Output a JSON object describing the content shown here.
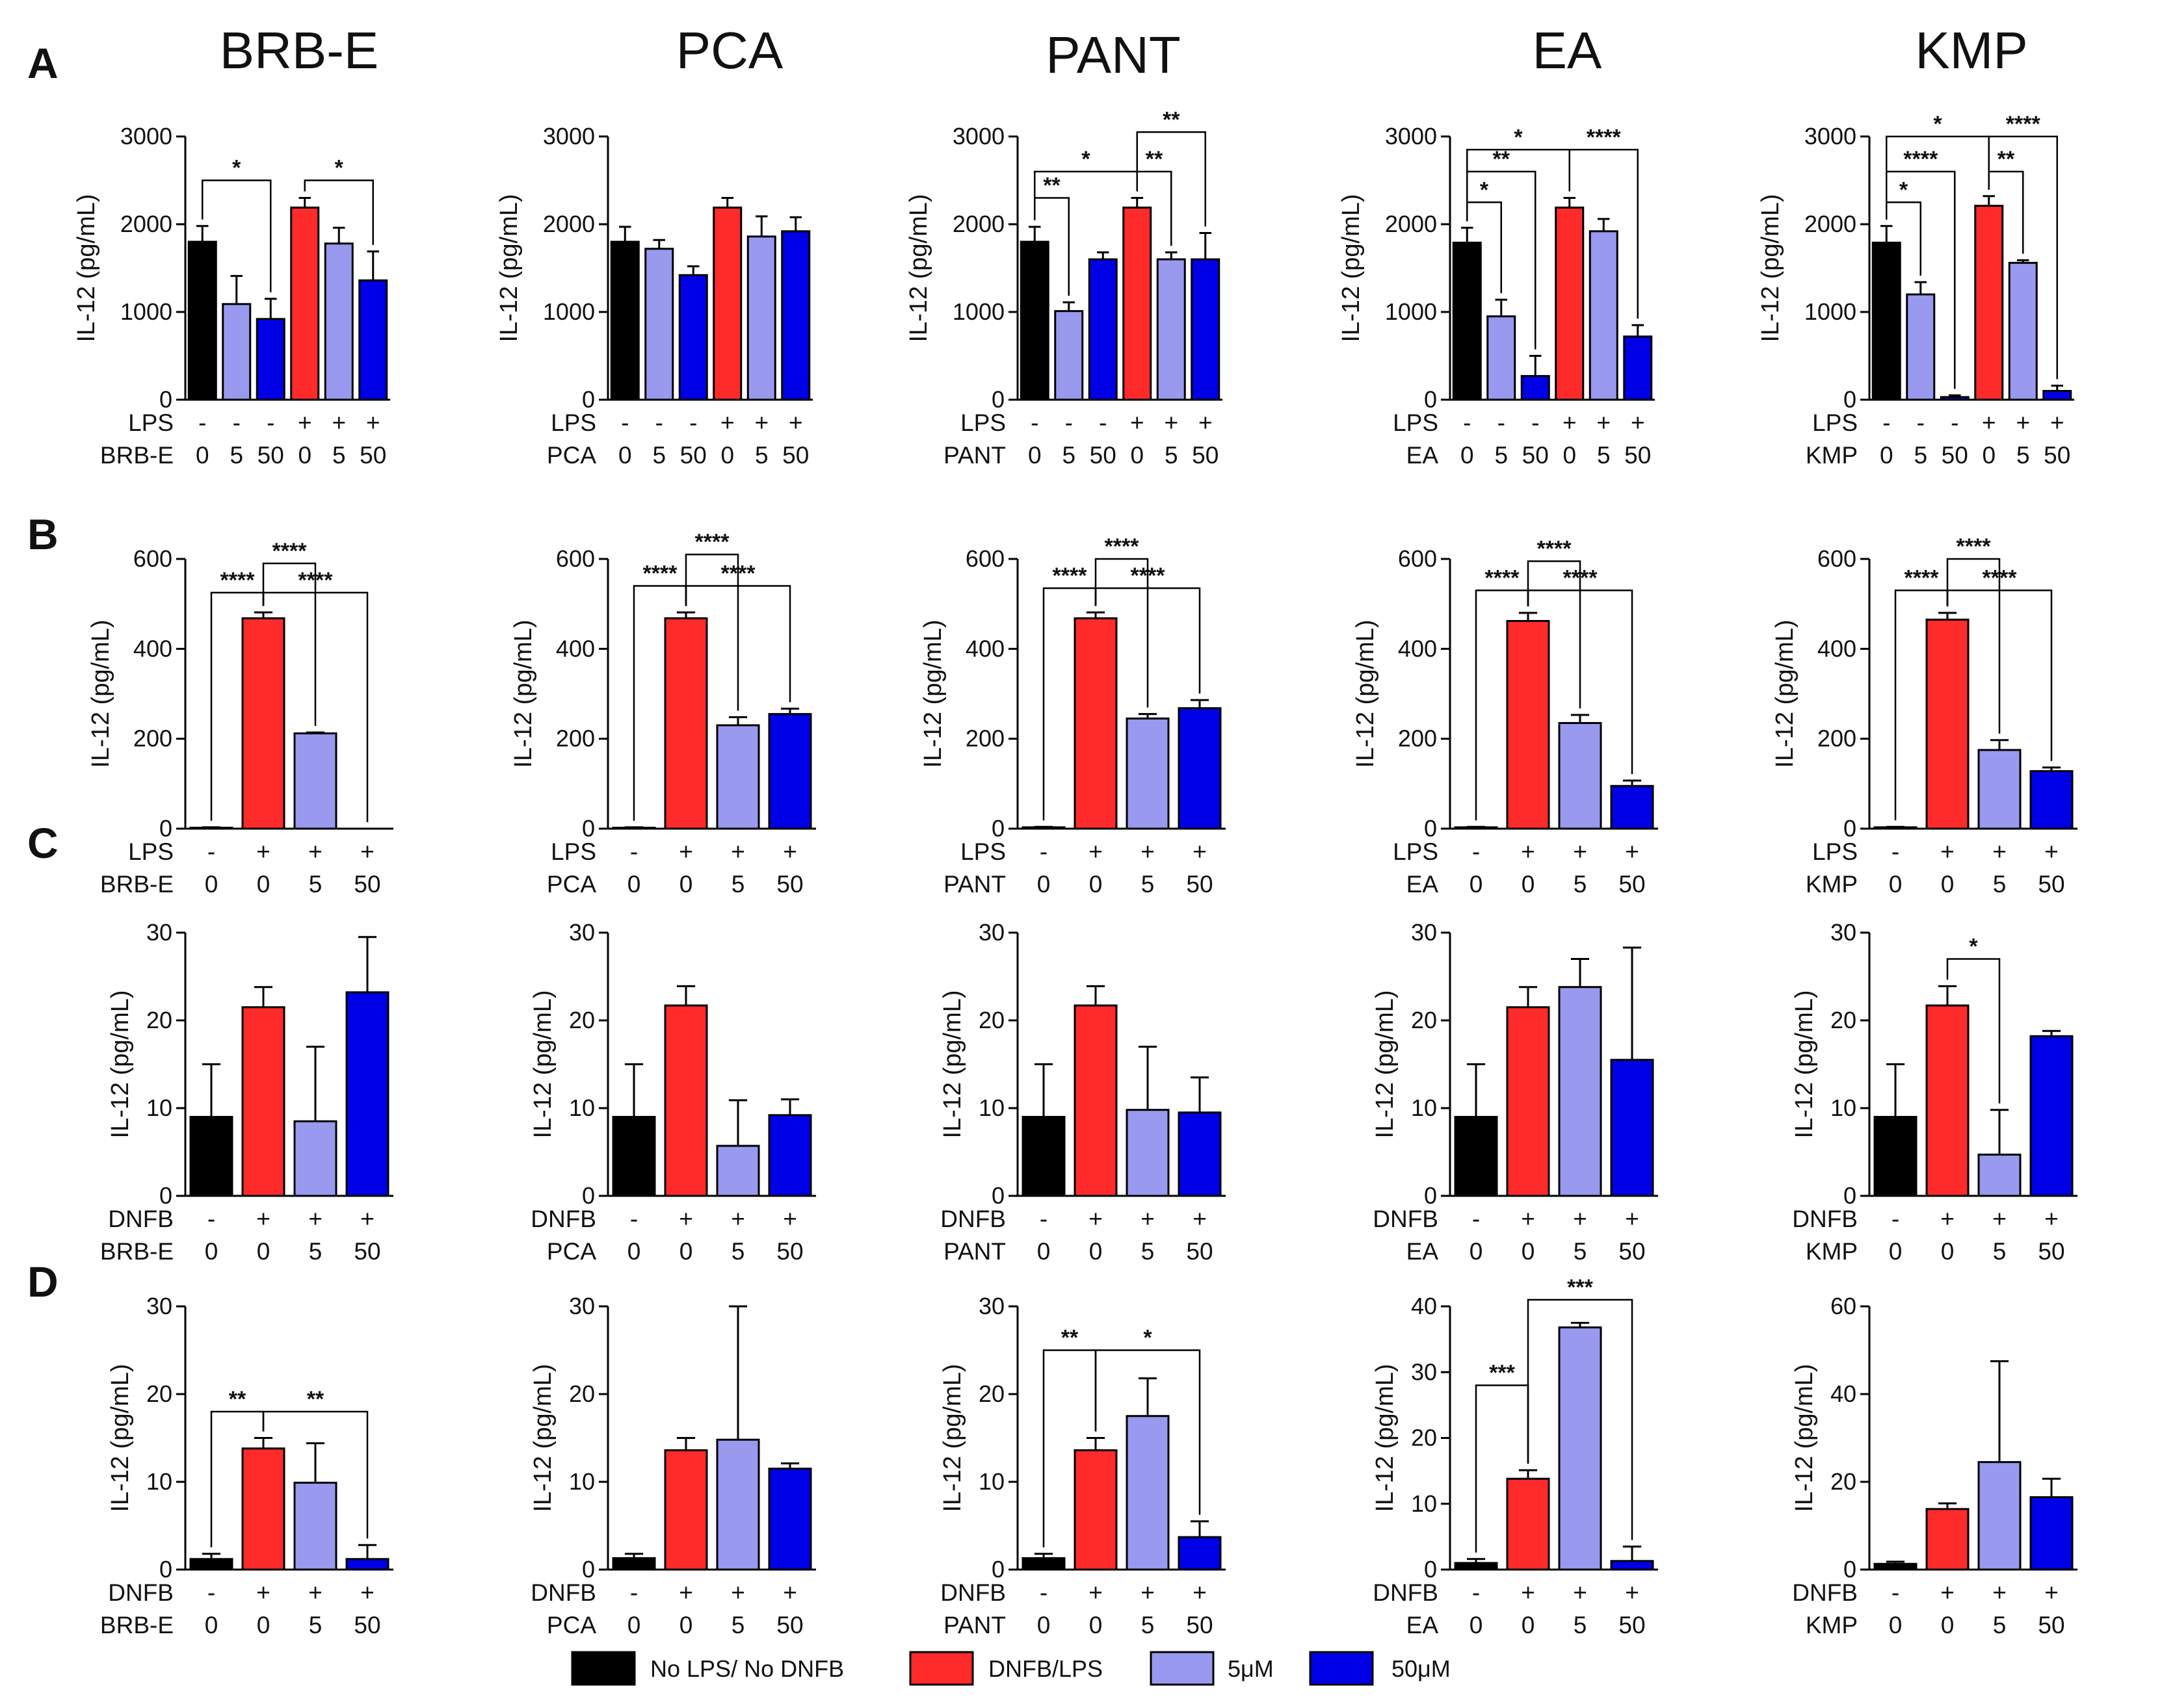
{
  "figure": {
    "row_labels": [
      "A",
      "B",
      "C",
      "D"
    ],
    "column_titles": [
      "BRB-E",
      "PCA",
      "PANT",
      "EA",
      "KMP"
    ],
    "legend": [
      {
        "label": "No LPS/ No DNFB",
        "color": "#000000"
      },
      {
        "label": "DNFB/LPS",
        "color": "#ff2a2a"
      },
      {
        "label": "5μM",
        "color": "#9999f0"
      },
      {
        "label": "50μM",
        "color": "#0000e6"
      }
    ]
  },
  "chart_data": [
    {
      "id": "A-BRB-E",
      "row": "A",
      "col": 0,
      "type": "bar",
      "ylabel": "IL-12 (pg/mL)",
      "ylim": [
        0,
        3000
      ],
      "yticks": [
        0,
        1000,
        2000,
        3000
      ],
      "stim_label": "LPS",
      "stim": [
        "-",
        "-",
        "-",
        "+",
        "+",
        "+"
      ],
      "compound_label": "BRB-E",
      "conc": [
        "0",
        "5",
        "50",
        "0",
        "5",
        "50"
      ],
      "values": [
        1800,
        1090,
        920,
        2190,
        1780,
        1360
      ],
      "errors": [
        180,
        320,
        230,
        110,
        180,
        330
      ],
      "colors": [
        "#000000",
        "#9999f0",
        "#0000e6",
        "#ff2a2a",
        "#9999f0",
        "#0000e6"
      ],
      "sig": [
        {
          "a": 0,
          "b": 2,
          "y": 2500,
          "label": "*"
        },
        {
          "a": 3,
          "b": 5,
          "y": 2500,
          "label": "*"
        }
      ]
    },
    {
      "id": "A-PCA",
      "row": "A",
      "col": 1,
      "type": "bar",
      "ylabel": "IL-12 (pg/mL)",
      "ylim": [
        0,
        3000
      ],
      "yticks": [
        0,
        1000,
        2000,
        3000
      ],
      "stim_label": "LPS",
      "stim": [
        "-",
        "-",
        "-",
        "+",
        "+",
        "+"
      ],
      "compound_label": "PCA",
      "conc": [
        "0",
        "5",
        "50",
        "0",
        "5",
        "50"
      ],
      "values": [
        1800,
        1720,
        1420,
        2190,
        1860,
        1920
      ],
      "errors": [
        170,
        100,
        100,
        110,
        230,
        160
      ],
      "colors": [
        "#000000",
        "#9999f0",
        "#0000e6",
        "#ff2a2a",
        "#9999f0",
        "#0000e6"
      ],
      "sig": []
    },
    {
      "id": "A-PANT",
      "row": "A",
      "col": 2,
      "type": "bar",
      "ylabel": "IL-12 (pg/mL)",
      "ylim": [
        0,
        3000
      ],
      "yticks": [
        0,
        1000,
        2000,
        3000
      ],
      "stim_label": "LPS",
      "stim": [
        "-",
        "-",
        "-",
        "+",
        "+",
        "+"
      ],
      "compound_label": "PANT",
      "conc": [
        "0",
        "5",
        "50",
        "0",
        "5",
        "50"
      ],
      "values": [
        1800,
        1010,
        1600,
        2190,
        1600,
        1600
      ],
      "errors": [
        170,
        100,
        80,
        110,
        80,
        300
      ],
      "colors": [
        "#000000",
        "#9999f0",
        "#0000e6",
        "#ff2a2a",
        "#9999f0",
        "#0000e6"
      ],
      "sig": [
        {
          "a": 0,
          "b": 1,
          "y": 2300,
          "label": "**"
        },
        {
          "a": 0,
          "b": 3,
          "y": 2600,
          "label": "*"
        },
        {
          "a": 3,
          "b": 4,
          "y": 2600,
          "label": "**"
        },
        {
          "a": 3,
          "b": 5,
          "y": 3050,
          "label": "**"
        }
      ]
    },
    {
      "id": "A-EA",
      "row": "A",
      "col": 3,
      "type": "bar",
      "ylabel": "IL-12 (pg/mL)",
      "ylim": [
        0,
        3000
      ],
      "yticks": [
        0,
        1000,
        2000,
        3000
      ],
      "stim_label": "LPS",
      "stim": [
        "-",
        "-",
        "-",
        "+",
        "+",
        "+"
      ],
      "compound_label": "EA",
      "conc": [
        "0",
        "5",
        "50",
        "0",
        "5",
        "50"
      ],
      "values": [
        1790,
        950,
        270,
        2190,
        1920,
        720
      ],
      "errors": [
        170,
        190,
        230,
        110,
        140,
        130
      ],
      "colors": [
        "#000000",
        "#9999f0",
        "#0000e6",
        "#ff2a2a",
        "#9999f0",
        "#0000e6"
      ],
      "sig": [
        {
          "a": 0,
          "b": 1,
          "y": 2250,
          "label": "*"
        },
        {
          "a": 0,
          "b": 2,
          "y": 2600,
          "label": "**"
        },
        {
          "a": 0,
          "b": 3,
          "y": 2850,
          "label": "*"
        },
        {
          "a": 3,
          "b": 5,
          "y": 2850,
          "label": "****"
        }
      ]
    },
    {
      "id": "A-KMP",
      "row": "A",
      "col": 4,
      "type": "bar",
      "ylabel": "IL-12 (pg/mL)",
      "ylim": [
        0,
        3000
      ],
      "yticks": [
        0,
        1000,
        2000,
        3000
      ],
      "stim_label": "LPS",
      "stim": [
        "-",
        "-",
        "-",
        "+",
        "+",
        "+"
      ],
      "compound_label": "KMP",
      "conc": [
        "0",
        "5",
        "50",
        "0",
        "5",
        "50"
      ],
      "values": [
        1790,
        1200,
        30,
        2210,
        1560,
        100
      ],
      "errors": [
        190,
        140,
        20,
        110,
        30,
        60
      ],
      "colors": [
        "#000000",
        "#9999f0",
        "#0000e6",
        "#ff2a2a",
        "#9999f0",
        "#0000e6"
      ],
      "sig": [
        {
          "a": 0,
          "b": 1,
          "y": 2250,
          "label": "*"
        },
        {
          "a": 0,
          "b": 2,
          "y": 2600,
          "label": "****"
        },
        {
          "a": 0,
          "b": 3,
          "y": 3000,
          "label": "*"
        },
        {
          "a": 3,
          "b": 4,
          "y": 2600,
          "label": "**"
        },
        {
          "a": 3,
          "b": 5,
          "y": 3000,
          "label": "****"
        }
      ]
    },
    {
      "id": "B-BRB-E",
      "row": "B",
      "col": 0,
      "type": "bar",
      "ylabel": "IL-12 (pg/mL)",
      "ylim": [
        0,
        600
      ],
      "yticks": [
        0,
        200,
        400,
        600
      ],
      "stim_label": "LPS",
      "stim": [
        "-",
        "+",
        "+",
        "+"
      ],
      "compound_label": "BRB-E",
      "conc": [
        "0",
        "0",
        "5",
        "50"
      ],
      "values": [
        2,
        468,
        212,
        0
      ],
      "errors": [
        1,
        13,
        2,
        0
      ],
      "colors": [
        "#000000",
        "#ff2a2a",
        "#9999f0",
        "#0000e6"
      ],
      "sig": [
        {
          "a": 0,
          "b": 1,
          "y": 525,
          "label": "****"
        },
        {
          "a": 1,
          "b": 2,
          "y": 590,
          "label": "****"
        },
        {
          "a": 1,
          "b": 3,
          "y": 525,
          "label": "****"
        }
      ]
    },
    {
      "id": "B-PCA",
      "row": "B",
      "col": 1,
      "type": "bar",
      "ylabel": "IL-12 (pg/mL)",
      "ylim": [
        0,
        600
      ],
      "yticks": [
        0,
        200,
        400,
        600
      ],
      "stim_label": "LPS",
      "stim": [
        "-",
        "+",
        "+",
        "+"
      ],
      "compound_label": "PCA",
      "conc": [
        "0",
        "0",
        "5",
        "50"
      ],
      "values": [
        2,
        468,
        230,
        255
      ],
      "errors": [
        1,
        13,
        18,
        12
      ],
      "colors": [
        "#000000",
        "#ff2a2a",
        "#9999f0",
        "#0000e6"
      ],
      "sig": [
        {
          "a": 0,
          "b": 1,
          "y": 540,
          "label": "****"
        },
        {
          "a": 1,
          "b": 2,
          "y": 610,
          "label": "****"
        },
        {
          "a": 1,
          "b": 3,
          "y": 540,
          "label": "****"
        }
      ]
    },
    {
      "id": "B-PANT",
      "row": "B",
      "col": 2,
      "type": "bar",
      "ylabel": "IL-12 (pg/mL)",
      "ylim": [
        0,
        600
      ],
      "yticks": [
        0,
        200,
        400,
        600
      ],
      "stim_label": "LPS",
      "stim": [
        "-",
        "+",
        "+",
        "+"
      ],
      "compound_label": "PANT",
      "conc": [
        "0",
        "0",
        "5",
        "50"
      ],
      "values": [
        3,
        468,
        245,
        268
      ],
      "errors": [
        1,
        13,
        10,
        18
      ],
      "colors": [
        "#000000",
        "#ff2a2a",
        "#9999f0",
        "#0000e6"
      ],
      "sig": [
        {
          "a": 0,
          "b": 1,
          "y": 535,
          "label": "****"
        },
        {
          "a": 1,
          "b": 2,
          "y": 600,
          "label": "****"
        },
        {
          "a": 1,
          "b": 3,
          "y": 535,
          "label": "****"
        }
      ]
    },
    {
      "id": "B-EA",
      "row": "B",
      "col": 3,
      "type": "bar",
      "ylabel": "IL-12 (pg/mL)",
      "ylim": [
        0,
        600
      ],
      "yticks": [
        0,
        200,
        400,
        600
      ],
      "stim_label": "LPS",
      "stim": [
        "-",
        "+",
        "+",
        "+"
      ],
      "compound_label": "EA",
      "conc": [
        "0",
        "0",
        "5",
        "50"
      ],
      "values": [
        3,
        462,
        235,
        95
      ],
      "errors": [
        1,
        18,
        18,
        12
      ],
      "colors": [
        "#000000",
        "#ff2a2a",
        "#9999f0",
        "#0000e6"
      ],
      "sig": [
        {
          "a": 0,
          "b": 1,
          "y": 530,
          "label": "****"
        },
        {
          "a": 1,
          "b": 2,
          "y": 595,
          "label": "****"
        },
        {
          "a": 1,
          "b": 3,
          "y": 530,
          "label": "****"
        }
      ]
    },
    {
      "id": "B-KMP",
      "row": "B",
      "col": 4,
      "type": "bar",
      "ylabel": "IL-12 (pg/mL)",
      "ylim": [
        0,
        600
      ],
      "yticks": [
        0,
        200,
        400,
        600
      ],
      "stim_label": "LPS",
      "stim": [
        "-",
        "+",
        "+",
        "+"
      ],
      "compound_label": "KMP",
      "conc": [
        "0",
        "0",
        "5",
        "50"
      ],
      "values": [
        3,
        465,
        175,
        128
      ],
      "errors": [
        1,
        15,
        22,
        8
      ],
      "colors": [
        "#000000",
        "#ff2a2a",
        "#9999f0",
        "#0000e6"
      ],
      "sig": [
        {
          "a": 0,
          "b": 1,
          "y": 530,
          "label": "****"
        },
        {
          "a": 1,
          "b": 2,
          "y": 600,
          "label": "****"
        },
        {
          "a": 1,
          "b": 3,
          "y": 530,
          "label": "****"
        }
      ]
    },
    {
      "id": "C-BRB-E",
      "row": "C",
      "col": 0,
      "type": "bar",
      "ylabel": "IL-12 (pg/mL)",
      "ylim": [
        0,
        30
      ],
      "yticks": [
        0,
        10,
        20,
        30
      ],
      "stim_label": "DNFB",
      "stim": [
        "-",
        "+",
        "+",
        "+"
      ],
      "compound_label": "BRB-E",
      "conc": [
        "0",
        "0",
        "5",
        "50"
      ],
      "values": [
        9,
        21.5,
        8.5,
        23.2
      ],
      "errors": [
        6,
        2.3,
        8.5,
        6.3
      ],
      "colors": [
        "#000000",
        "#ff2a2a",
        "#9999f0",
        "#0000e6"
      ],
      "sig": []
    },
    {
      "id": "C-PCA",
      "row": "C",
      "col": 1,
      "type": "bar",
      "ylabel": "IL-12 (pg/mL)",
      "ylim": [
        0,
        30
      ],
      "yticks": [
        0,
        10,
        20,
        30
      ],
      "stim_label": "DNFB",
      "stim": [
        "-",
        "+",
        "+",
        "+"
      ],
      "compound_label": "PCA",
      "conc": [
        "0",
        "0",
        "5",
        "50"
      ],
      "values": [
        9,
        21.7,
        5.7,
        9.2
      ],
      "errors": [
        6,
        2.2,
        5.2,
        1.8
      ],
      "colors": [
        "#000000",
        "#ff2a2a",
        "#9999f0",
        "#0000e6"
      ],
      "sig": []
    },
    {
      "id": "C-PANT",
      "row": "C",
      "col": 2,
      "type": "bar",
      "ylabel": "IL-12 (pg/mL)",
      "ylim": [
        0,
        30
      ],
      "yticks": [
        0,
        10,
        20,
        30
      ],
      "stim_label": "DNFB",
      "stim": [
        "-",
        "+",
        "+",
        "+"
      ],
      "compound_label": "PANT",
      "conc": [
        "0",
        "0",
        "5",
        "50"
      ],
      "values": [
        9,
        21.7,
        9.8,
        9.5
      ],
      "errors": [
        6,
        2.2,
        7.2,
        4.0
      ],
      "colors": [
        "#000000",
        "#ff2a2a",
        "#9999f0",
        "#0000e6"
      ],
      "sig": []
    },
    {
      "id": "C-EA",
      "row": "C",
      "col": 3,
      "type": "bar",
      "ylabel": "IL-12 (pg/mL)",
      "ylim": [
        0,
        30
      ],
      "yticks": [
        0,
        10,
        20,
        30
      ],
      "stim_label": "DNFB",
      "stim": [
        "-",
        "+",
        "+",
        "+"
      ],
      "compound_label": "EA",
      "conc": [
        "0",
        "0",
        "5",
        "50"
      ],
      "values": [
        9,
        21.5,
        23.8,
        15.5
      ],
      "errors": [
        6,
        2.3,
        3.2,
        12.8
      ],
      "colors": [
        "#000000",
        "#ff2a2a",
        "#9999f0",
        "#0000e6"
      ],
      "sig": []
    },
    {
      "id": "C-KMP",
      "row": "C",
      "col": 4,
      "type": "bar",
      "ylabel": "IL-12 (pg/mL)",
      "ylim": [
        0,
        30
      ],
      "yticks": [
        0,
        10,
        20,
        30
      ],
      "stim_label": "DNFB",
      "stim": [
        "-",
        "+",
        "+",
        "+"
      ],
      "compound_label": "KMP",
      "conc": [
        "0",
        "0",
        "5",
        "50"
      ],
      "values": [
        9,
        21.7,
        4.7,
        18.2
      ],
      "errors": [
        6,
        2.2,
        5.1,
        0.6
      ],
      "colors": [
        "#000000",
        "#ff2a2a",
        "#9999f0",
        "#0000e6"
      ],
      "sig": [
        {
          "a": 1,
          "b": 2,
          "y": 27,
          "label": "*"
        }
      ]
    },
    {
      "id": "D-BRB-E",
      "row": "D",
      "col": 0,
      "type": "bar",
      "ylabel": "IL-12 (pg/mL)",
      "ylim": [
        0,
        30
      ],
      "yticks": [
        0,
        10,
        20,
        30
      ],
      "stim_label": "DNFB",
      "stim": [
        "-",
        "+",
        "+",
        "+"
      ],
      "compound_label": "BRB-E",
      "conc": [
        "0",
        "0",
        "5",
        "50"
      ],
      "values": [
        1.2,
        13.8,
        9.9,
        1.2
      ],
      "errors": [
        0.6,
        1.2,
        4.5,
        1.6
      ],
      "colors": [
        "#000000",
        "#ff2a2a",
        "#9999f0",
        "#0000e6"
      ],
      "sig": [
        {
          "a": 0,
          "b": 1,
          "y": 18,
          "label": "**"
        },
        {
          "a": 1,
          "b": 3,
          "y": 18,
          "label": "**"
        }
      ]
    },
    {
      "id": "D-PCA",
      "row": "D",
      "col": 1,
      "type": "bar",
      "ylabel": "IL-12 (pg/mL)",
      "ylim": [
        0,
        30
      ],
      "yticks": [
        0,
        10,
        20,
        30
      ],
      "stim_label": "DNFB",
      "stim": [
        "-",
        "+",
        "+",
        "+"
      ],
      "compound_label": "PCA",
      "conc": [
        "0",
        "0",
        "5",
        "50"
      ],
      "values": [
        1.3,
        13.6,
        14.8,
        11.5
      ],
      "errors": [
        0.5,
        1.4,
        15.2,
        0.6
      ],
      "colors": [
        "#000000",
        "#ff2a2a",
        "#9999f0",
        "#0000e6"
      ],
      "sig": []
    },
    {
      "id": "D-PANT",
      "row": "D",
      "col": 2,
      "type": "bar",
      "ylabel": "IL-12 (pg/mL)",
      "ylim": [
        0,
        30
      ],
      "yticks": [
        0,
        10,
        20,
        30
      ],
      "stim_label": "DNFB",
      "stim": [
        "-",
        "+",
        "+",
        "+"
      ],
      "compound_label": "PANT",
      "conc": [
        "0",
        "0",
        "5",
        "50"
      ],
      "values": [
        1.3,
        13.6,
        17.5,
        3.7
      ],
      "errors": [
        0.5,
        1.4,
        4.3,
        1.8
      ],
      "colors": [
        "#000000",
        "#ff2a2a",
        "#9999f0",
        "#0000e6"
      ],
      "sig": [
        {
          "a": 0,
          "b": 1,
          "y": 25,
          "label": "**"
        },
        {
          "a": 1,
          "b": 3,
          "y": 25,
          "label": "*"
        }
      ]
    },
    {
      "id": "D-EA",
      "row": "D",
      "col": 3,
      "type": "bar",
      "ylabel": "IL-12 (pg/mL)",
      "ylim": [
        0,
        40
      ],
      "yticks": [
        0,
        10,
        20,
        30,
        40
      ],
      "stim_label": "DNFB",
      "stim": [
        "-",
        "+",
        "+",
        "+"
      ],
      "compound_label": "EA",
      "conc": [
        "0",
        "0",
        "5",
        "50"
      ],
      "values": [
        1.0,
        13.8,
        36.8,
        1.3
      ],
      "errors": [
        0.6,
        1.3,
        0.7,
        2.2
      ],
      "colors": [
        "#000000",
        "#ff2a2a",
        "#9999f0",
        "#0000e6"
      ],
      "sig": [
        {
          "a": 0,
          "b": 1,
          "y": 28,
          "label": "***"
        },
        {
          "a": 1,
          "b": 3,
          "y": 41,
          "label": "***"
        }
      ]
    },
    {
      "id": "D-KMP",
      "row": "D",
      "col": 4,
      "type": "bar",
      "ylabel": "IL-12 (pg/mL)",
      "ylim": [
        0,
        60
      ],
      "yticks": [
        0,
        20,
        40,
        60
      ],
      "stim_label": "DNFB",
      "stim": [
        "-",
        "+",
        "+",
        "+"
      ],
      "compound_label": "KMP",
      "conc": [
        "0",
        "0",
        "5",
        "50"
      ],
      "values": [
        1.3,
        13.8,
        24.5,
        16.5
      ],
      "errors": [
        0.5,
        1.3,
        23.0,
        4.2
      ],
      "colors": [
        "#000000",
        "#ff2a2a",
        "#9999f0",
        "#0000e6"
      ],
      "sig": []
    }
  ]
}
